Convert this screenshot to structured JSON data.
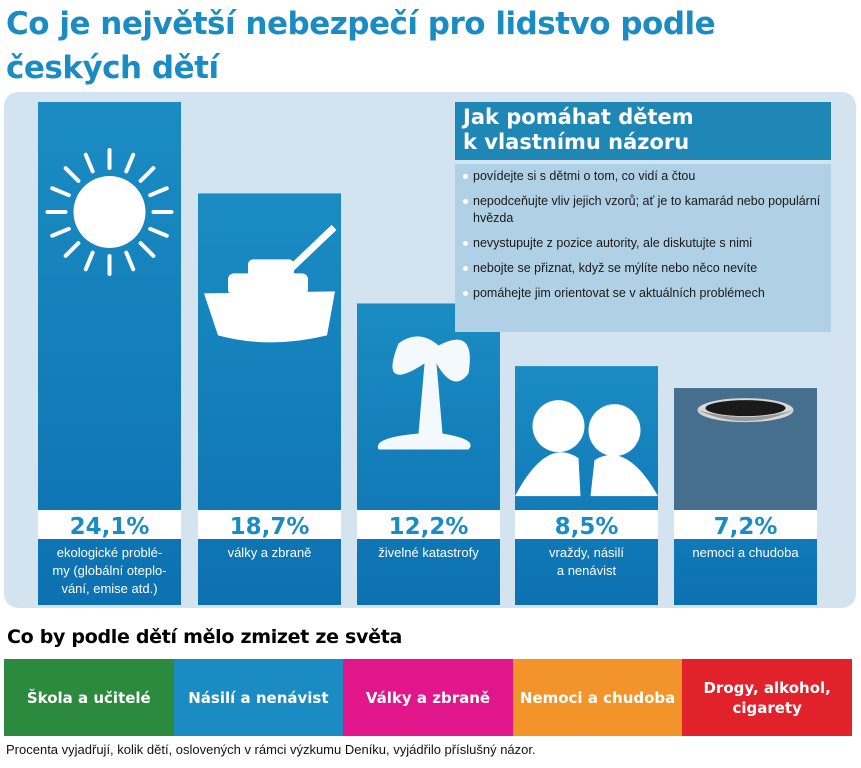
{
  "title": "Co je největší nebezpečí pro lidstvo podle českých dětí",
  "chart_data": {
    "type": "bar",
    "categories": [
      "ekologické problémy (globální oteplování, emise atd.)",
      "války a zbraně",
      "živelné katastrofy",
      "vraždy, násilí a nenávist",
      "nemoci a chudoba"
    ],
    "values": [
      24.1,
      18.7,
      12.2,
      8.5,
      7.2
    ],
    "value_labels": [
      "24,1%",
      "18,7%",
      "12,2%",
      "8,5%",
      "7,2%"
    ],
    "label_lines": [
      [
        "ekologické problé-",
        "my (globální oteplo-",
        "vání, emise atd.)"
      ],
      [
        "války a zbraně"
      ],
      [
        "živelné katastrofy"
      ],
      [
        "vraždy, násilí",
        "a nenávist"
      ],
      [
        "nemoci a chudoba"
      ]
    ],
    "icons": [
      "sun-icon",
      "tank-icon",
      "explosion-icon",
      "couple-icon",
      "bowl-icon"
    ],
    "colors": {
      "bar_top": "#1b8cc3",
      "bar_bottom": "#0c71b1",
      "value_box": "#ffffff",
      "value_text": "#1b8cc3"
    }
  },
  "advice": {
    "title_lines": [
      "Jak pomáhat dětem",
      "k vlastnímu názoru"
    ],
    "items": [
      "povídejte si s dětmi o tom, co vidí a čtou",
      "nepodceňujte vliv jejich vzorů; ať je to kamarád nebo populární hvězda",
      "nevystupujte z pozice autority, ale diskutujte s nimi",
      "nebojte se přiznat, když se mýlíte nebo něco nevíte",
      "pomáhejte jim orientovat se v aktuálních problémech"
    ]
  },
  "disappear": {
    "title": "Co by podle dětí mělo zmizet ze světa",
    "items": [
      {
        "label": "Škola a učitelé",
        "color": "#2c8a3e"
      },
      {
        "label": "Násilí a nenávist",
        "color": "#1b8cc3"
      },
      {
        "label": "Války a zbraně",
        "color": "#e0168a"
      },
      {
        "label": "Nemoci a chudoba",
        "color": "#f2942a"
      },
      {
        "label": "Drogy, alkohol, cigarety",
        "color": "#e2222b"
      }
    ]
  },
  "footnote": "Procenta vyjadřují, kolik dětí, oslovených v rámci výzkumu Deníku, vyjádřilo příslušný názor."
}
